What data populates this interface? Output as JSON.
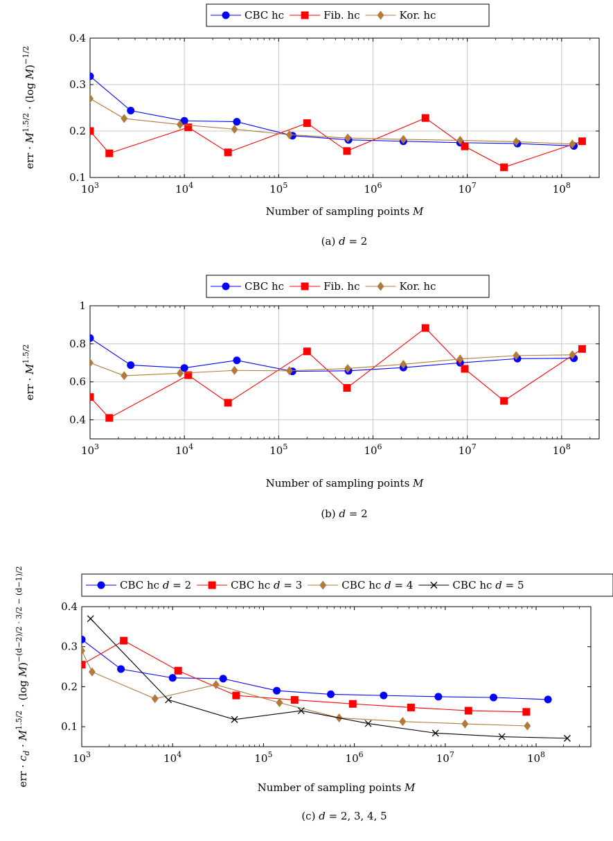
{
  "chart_data": [
    {
      "type": "line",
      "caption": "(a) d = 2",
      "caption_prefix": "(a)",
      "caption_math": "d = 2",
      "xlabel": "Number of sampling points M",
      "ylabel": "err · M^{1.5/2} · (log M)^{−1/2}",
      "x_scale": "log",
      "xlim": [
        1000,
        250000000
      ],
      "ylim": [
        0.1,
        0.4
      ],
      "y_ticks": [
        "0.1",
        "0.2",
        "0.3",
        "0.4"
      ],
      "x_ticks": [
        "10^3",
        "10^4",
        "10^5",
        "10^6",
        "10^7",
        "10^8"
      ],
      "grid": true,
      "legend_position": "top-center",
      "series": [
        {
          "name": "CBC hc",
          "color": "#0000ff",
          "marker": "circle",
          "x": [
            1000,
            2700,
            10000,
            36000,
            140000,
            550000,
            2100000,
            8400000,
            34000000,
            135000000
          ],
          "y": [
            0.318,
            0.244,
            0.222,
            0.22,
            0.19,
            0.181,
            0.178,
            0.175,
            0.173,
            0.168
          ]
        },
        {
          "name": "Fib. hc",
          "color": "#ff0000",
          "marker": "square",
          "x": [
            1000,
            1600,
            11000,
            29000,
            200000,
            530000,
            3600000,
            9400000,
            24500000,
            165000000
          ],
          "y": [
            0.2,
            0.152,
            0.208,
            0.154,
            0.217,
            0.157,
            0.228,
            0.167,
            0.122,
            0.178
          ]
        },
        {
          "name": "Kor. hc",
          "color": "#b07a3a",
          "marker": "diamond",
          "x": [
            1000,
            2300,
            9000,
            34000,
            130000,
            540000,
            2100000,
            8400000,
            33000000,
            130000000
          ],
          "y": [
            0.27,
            0.227,
            0.214,
            0.204,
            0.192,
            0.185,
            0.182,
            0.18,
            0.177,
            0.172
          ]
        }
      ]
    },
    {
      "type": "line",
      "caption": "(b) d = 2",
      "caption_prefix": "(b)",
      "caption_math": "d = 2",
      "xlabel": "Number of sampling points M",
      "ylabel": "err · M^{1.5/2}",
      "x_scale": "log",
      "xlim": [
        1000,
        250000000
      ],
      "ylim": [
        0.3,
        1.0
      ],
      "y_ticks": [
        "0.4",
        "0.6",
        "0.8",
        "1"
      ],
      "x_ticks": [
        "10^3",
        "10^4",
        "10^5",
        "10^6",
        "10^7",
        "10^8"
      ],
      "grid": true,
      "legend_position": "top-center",
      "series": [
        {
          "name": "CBC hc",
          "color": "#0000ff",
          "marker": "circle",
          "x": [
            1000,
            2700,
            10000,
            36000,
            140000,
            550000,
            2100000,
            8400000,
            34000000,
            135000000
          ],
          "y": [
            0.83,
            0.688,
            0.673,
            0.713,
            0.655,
            0.658,
            0.675,
            0.7,
            0.722,
            0.724
          ]
        },
        {
          "name": "Fib. hc",
          "color": "#ff0000",
          "marker": "square",
          "x": [
            1000,
            1600,
            11000,
            29000,
            200000,
            530000,
            3600000,
            9400000,
            24500000,
            165000000
          ],
          "y": [
            0.52,
            0.41,
            0.635,
            0.49,
            0.76,
            0.568,
            0.883,
            0.668,
            0.5,
            0.773
          ]
        },
        {
          "name": "Kor. hc",
          "color": "#b07a3a",
          "marker": "diamond",
          "x": [
            1000,
            2300,
            9000,
            34000,
            130000,
            540000,
            2100000,
            8400000,
            33000000,
            130000000
          ],
          "y": [
            0.7,
            0.632,
            0.645,
            0.66,
            0.658,
            0.67,
            0.692,
            0.72,
            0.738,
            0.742
          ]
        }
      ]
    },
    {
      "type": "line",
      "caption": "(c) d = 2, 3, 4, 5",
      "caption_prefix": "(c)",
      "caption_math": "d = 2, 3, 4, 5",
      "xlabel": "Number of sampling points M",
      "ylabel": "err · c_d · M^{1.5/2} · (log M)^{−(d−2)/2 · 3/2 − (d−1)/2}",
      "x_scale": "log",
      "xlim": [
        1000,
        400000000
      ],
      "ylim": [
        0.05,
        0.4
      ],
      "y_ticks": [
        "0.1",
        "0.2",
        "0.3",
        "0.4"
      ],
      "x_ticks": [
        "10^3",
        "10^4",
        "10^5",
        "10^6",
        "10^7",
        "10^8"
      ],
      "grid": false,
      "legend_position": "top",
      "series": [
        {
          "name": "CBC hc d = 2",
          "color": "#0000ff",
          "marker": "circle",
          "x": [
            1000,
            2700,
            10000,
            36000,
            140000,
            550000,
            2100000,
            8400000,
            34000000,
            135000000
          ],
          "y": [
            0.318,
            0.244,
            0.222,
            0.22,
            0.19,
            0.181,
            0.178,
            0.175,
            0.173,
            0.168
          ]
        },
        {
          "name": "CBC hc d = 3",
          "color": "#ff0000",
          "marker": "square",
          "x": [
            1000,
            2900,
            11500,
            50000,
            220000,
            960000,
            4200000,
            18000000,
            78000000
          ],
          "y": [
            0.255,
            0.315,
            0.24,
            0.178,
            0.167,
            0.157,
            0.148,
            0.14,
            0.137
          ]
        },
        {
          "name": "CBC hc d = 4",
          "color": "#b07a3a",
          "marker": "diamond",
          "x": [
            1000,
            1300,
            6400,
            30000,
            150000,
            680000,
            3400000,
            16500000,
            80000000
          ],
          "y": [
            0.29,
            0.237,
            0.17,
            0.205,
            0.16,
            0.122,
            0.113,
            0.107,
            0.102
          ]
        },
        {
          "name": "CBC hc d = 5",
          "color": "#000000",
          "marker": "cross",
          "x": [
            1250,
            9000,
            48000,
            260000,
            1420000,
            7800000,
            42000000,
            220000000
          ],
          "y": [
            0.37,
            0.167,
            0.118,
            0.14,
            0.108,
            0.084,
            0.075,
            0.071
          ]
        }
      ]
    }
  ]
}
